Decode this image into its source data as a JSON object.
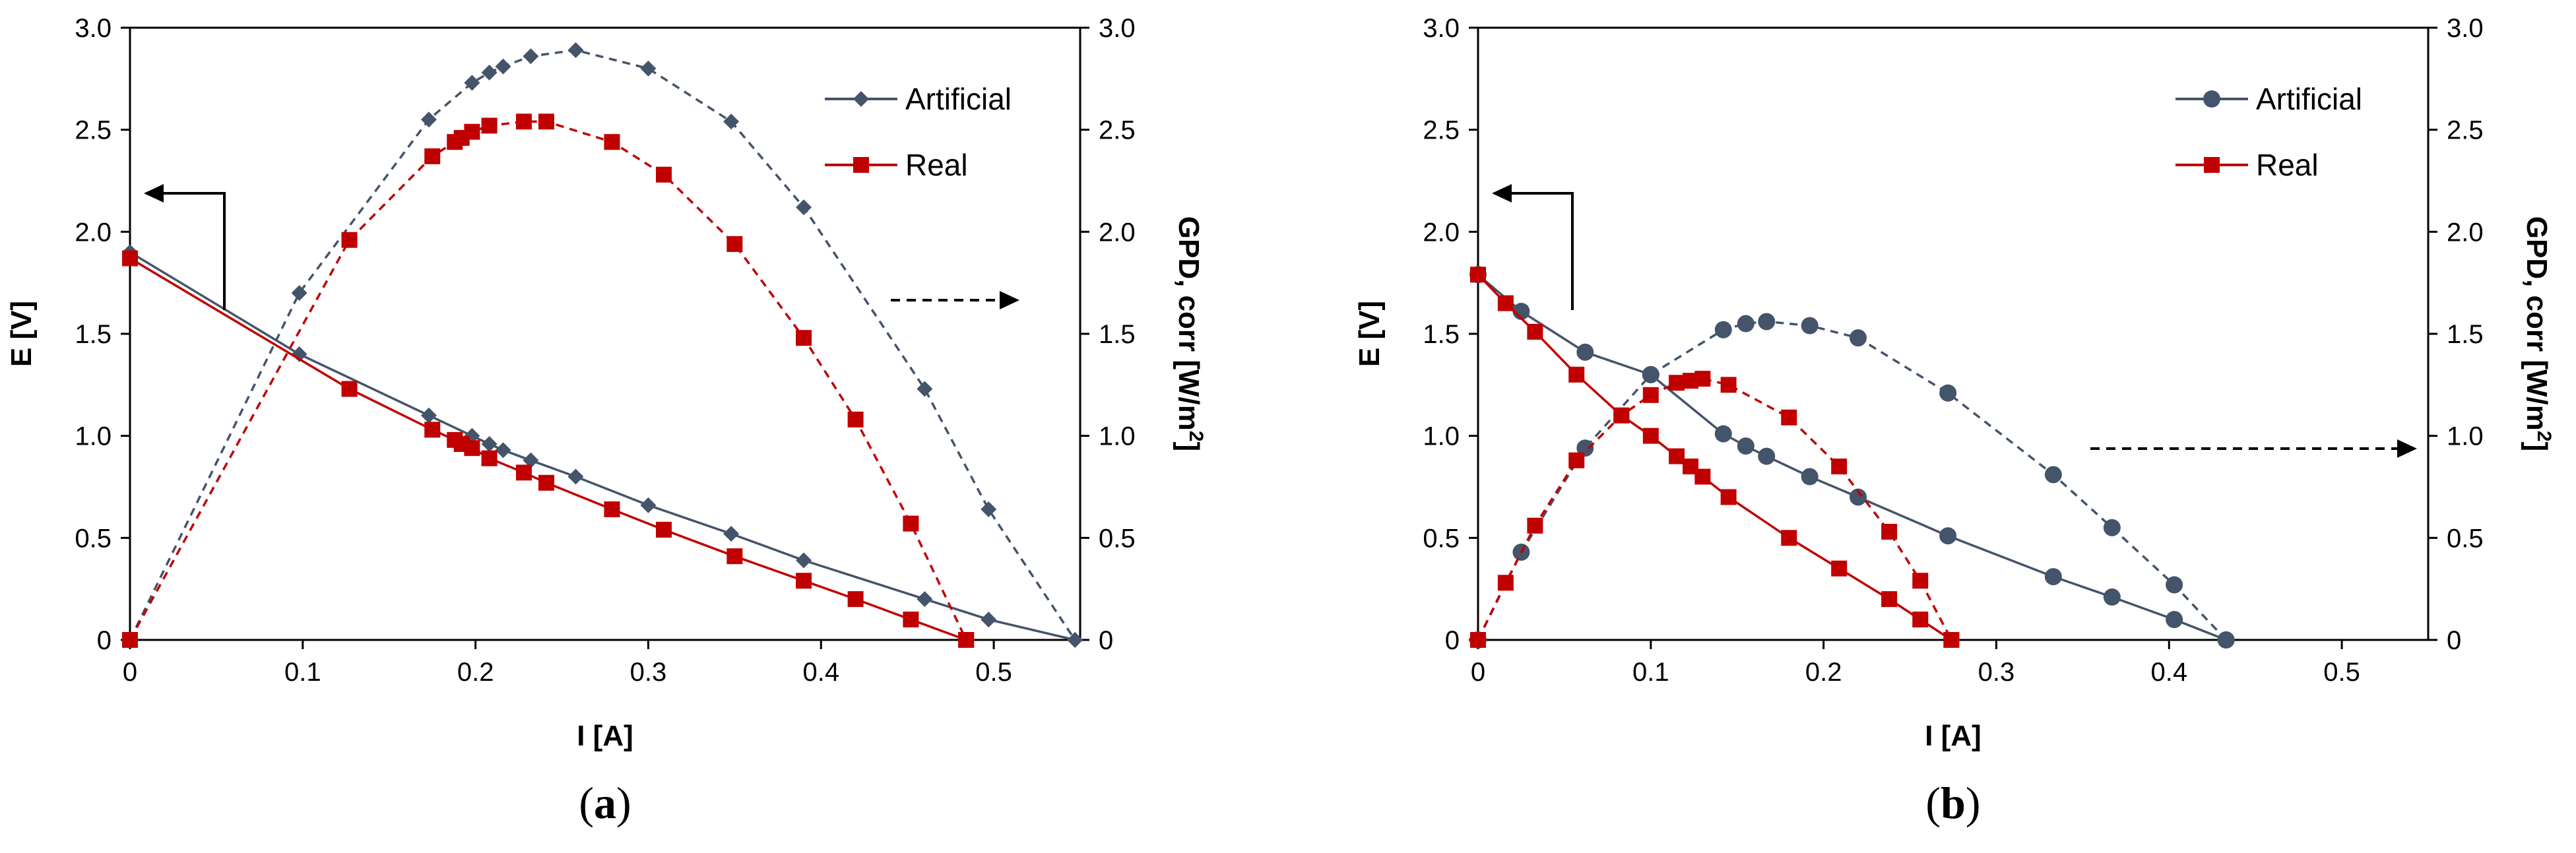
{
  "chart_data": [
    {
      "type": "line",
      "panel_label": "a",
      "xlabel": "I [A]",
      "ylabel_left": "E [V]",
      "ylabel_right": "GPD, corr [W/m",
      "ylabel_right_sup": "2",
      "ylabel_right_end": "]",
      "xlim": [
        0,
        0.55
      ],
      "xticks": [
        "0",
        "0.1",
        "0.2",
        "0.3",
        "0.4",
        "0.5"
      ],
      "xtick_values": [
        0,
        0.1,
        0.2,
        0.3,
        0.4,
        0.5
      ],
      "ylim": [
        0,
        3.0
      ],
      "yticks": [
        "0",
        "0.5",
        "1.0",
        "1.5",
        "2.0",
        "2.5",
        "3.0"
      ],
      "ytick_values": [
        0,
        0.5,
        1.0,
        1.5,
        2.0,
        2.5,
        3.0
      ],
      "marker": "diamond",
      "legend": [
        {
          "label": "Artificial",
          "color": "#44546a"
        },
        {
          "label": "Real",
          "color": "#c00000"
        }
      ],
      "series": [
        {
          "name": "Artificial E",
          "axis": "left",
          "style": "solid",
          "color": "#44546a",
          "x": [
            0,
            0.098,
            0.173,
            0.198,
            0.208,
            0.216,
            0.232,
            0.258,
            0.3,
            0.348,
            0.39,
            0.46,
            0.497,
            0.547
          ],
          "y": [
            1.9,
            1.4,
            1.1,
            1.0,
            0.96,
            0.93,
            0.88,
            0.8,
            0.66,
            0.52,
            0.39,
            0.2,
            0.1,
            0
          ]
        },
        {
          "name": "Real E",
          "axis": "left",
          "style": "solid",
          "color": "#c00000",
          "x": [
            0,
            0.127,
            0.175,
            0.188,
            0.192,
            0.198,
            0.208,
            0.228,
            0.241,
            0.279,
            0.309,
            0.35,
            0.39,
            0.42,
            0.452,
            0.484
          ],
          "y": [
            1.87,
            1.23,
            1.03,
            0.98,
            0.96,
            0.94,
            0.89,
            0.82,
            0.77,
            0.64,
            0.54,
            0.41,
            0.29,
            0.2,
            0.1,
            0
          ]
        },
        {
          "name": "Artificial GPD",
          "axis": "right",
          "style": "dashed",
          "color": "#44546a",
          "x": [
            0,
            0.098,
            0.173,
            0.198,
            0.208,
            0.216,
            0.232,
            0.258,
            0.3,
            0.348,
            0.39,
            0.46,
            0.497,
            0.547
          ],
          "y": [
            0,
            1.7,
            2.55,
            2.73,
            2.78,
            2.81,
            2.86,
            2.89,
            2.8,
            2.54,
            2.12,
            1.23,
            0.64,
            0
          ]
        },
        {
          "name": "Real GPD",
          "axis": "right",
          "style": "dashed",
          "color": "#c00000",
          "x": [
            0,
            0.127,
            0.175,
            0.188,
            0.192,
            0.198,
            0.208,
            0.228,
            0.241,
            0.279,
            0.309,
            0.35,
            0.39,
            0.42,
            0.452,
            0.484
          ],
          "y": [
            0,
            1.96,
            2.37,
            2.44,
            2.46,
            2.49,
            2.52,
            2.54,
            2.54,
            2.44,
            2.28,
            1.94,
            1.48,
            1.08,
            0.57,
            0
          ]
        }
      ]
    },
    {
      "type": "line",
      "panel_label": "b",
      "xlabel": "I [A]",
      "ylabel_left": "E [V]",
      "ylabel_right": "GPD, corr [W/m",
      "ylabel_right_sup": "2",
      "ylabel_right_end": "]",
      "xlim": [
        0,
        0.55
      ],
      "xticks": [
        "0",
        "0.1",
        "0.2",
        "0.3",
        "0.4",
        "0.5"
      ],
      "xtick_values": [
        0,
        0.1,
        0.2,
        0.3,
        0.4,
        0.5
      ],
      "ylim": [
        0,
        3.0
      ],
      "yticks": [
        "0",
        "0.5",
        "1.0",
        "1.5",
        "2.0",
        "2.5",
        "3.0"
      ],
      "ytick_values": [
        0,
        0.5,
        1.0,
        1.5,
        2.0,
        2.5,
        3.0
      ],
      "marker": "circle",
      "legend": [
        {
          "label": "Artificial",
          "color": "#44546a"
        },
        {
          "label": "Real",
          "color": "#c00000"
        }
      ],
      "series": [
        {
          "name": "Artificial E",
          "axis": "left",
          "style": "solid",
          "color": "#44546a",
          "x": [
            0,
            0.025,
            0.062,
            0.1,
            0.142,
            0.155,
            0.167,
            0.192,
            0.22,
            0.272,
            0.333,
            0.367,
            0.403,
            0.433
          ],
          "y": [
            1.79,
            1.61,
            1.41,
            1.3,
            1.01,
            0.95,
            0.9,
            0.8,
            0.7,
            0.51,
            0.31,
            0.21,
            0.1,
            0
          ]
        },
        {
          "name": "Real E",
          "axis": "left",
          "style": "solid",
          "color": "#c00000",
          "x": [
            0,
            0.016,
            0.033,
            0.057,
            0.083,
            0.1,
            0.115,
            0.123,
            0.13,
            0.145,
            0.18,
            0.209,
            0.238,
            0.256,
            0.274
          ],
          "y": [
            1.79,
            1.65,
            1.51,
            1.3,
            1.1,
            1.0,
            0.9,
            0.85,
            0.8,
            0.7,
            0.5,
            0.35,
            0.2,
            0.1,
            0
          ]
        },
        {
          "name": "Artificial GPD",
          "axis": "right",
          "style": "dashed",
          "color": "#44546a",
          "x": [
            0,
            0.025,
            0.062,
            0.1,
            0.142,
            0.155,
            0.167,
            0.192,
            0.22,
            0.272,
            0.333,
            0.367,
            0.403,
            0.433
          ],
          "y": [
            0,
            0.43,
            0.94,
            1.3,
            1.52,
            1.55,
            1.56,
            1.54,
            1.48,
            1.21,
            0.81,
            0.55,
            0.27,
            0
          ]
        },
        {
          "name": "Real GPD",
          "axis": "right",
          "style": "dashed",
          "color": "#c00000",
          "x": [
            0,
            0.016,
            0.033,
            0.057,
            0.083,
            0.1,
            0.115,
            0.123,
            0.13,
            0.145,
            0.18,
            0.209,
            0.238,
            0.256,
            0.274
          ],
          "y": [
            0,
            0.28,
            0.56,
            0.88,
            1.1,
            1.2,
            1.26,
            1.27,
            1.28,
            1.25,
            1.09,
            0.85,
            0.53,
            0.29,
            0
          ]
        }
      ]
    }
  ]
}
